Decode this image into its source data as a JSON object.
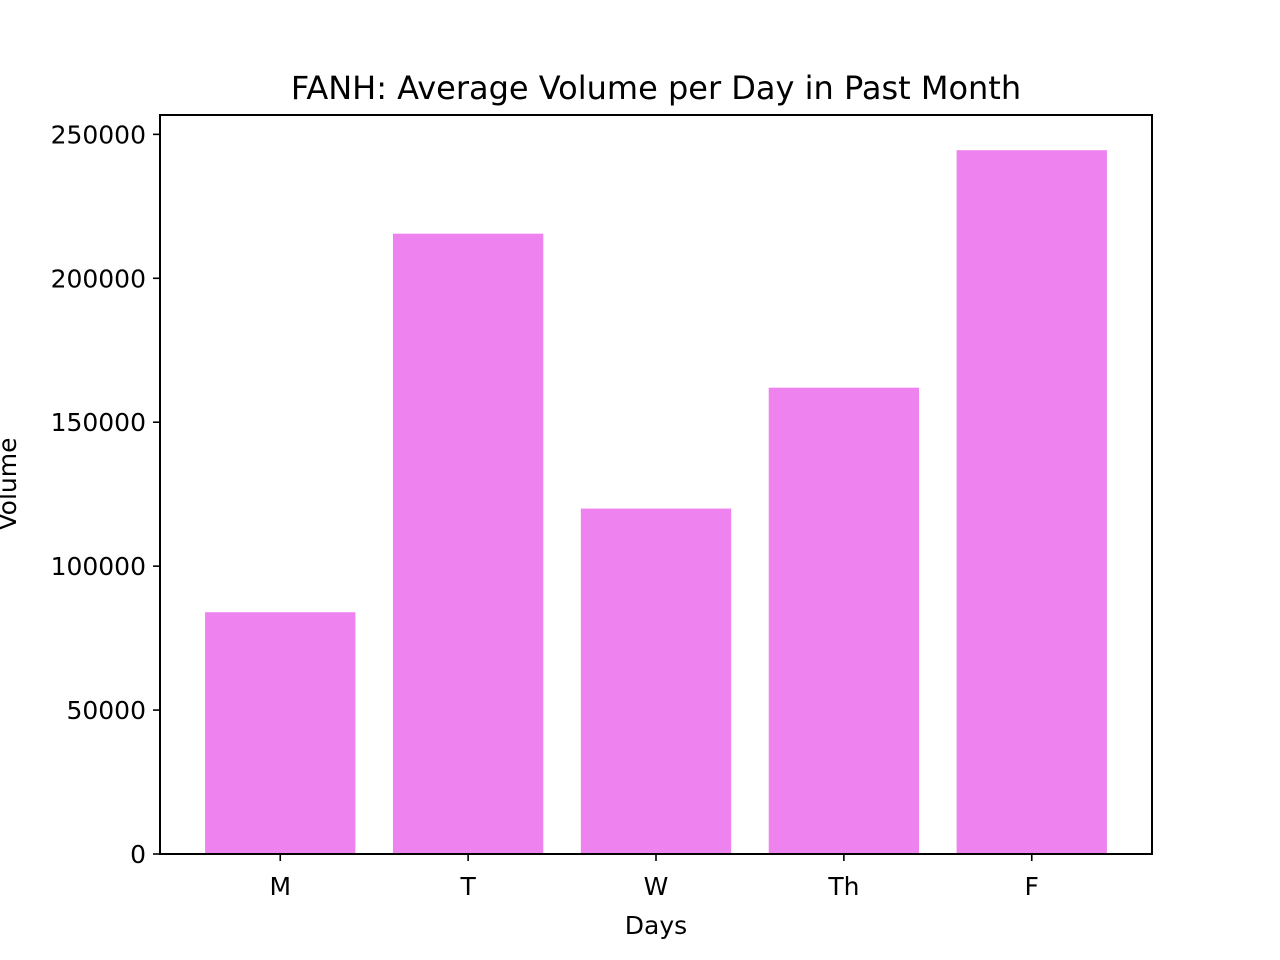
{
  "chart_data": {
    "type": "bar",
    "title": "FANH: Average Volume per Day in Past Month",
    "xlabel": "Days",
    "ylabel": "Volume",
    "categories": [
      "M",
      "T",
      "W",
      "Th",
      "F"
    ],
    "values": [
      84000,
      215500,
      120000,
      162000,
      244500
    ],
    "yticks": [
      0,
      50000,
      100000,
      150000,
      200000,
      250000
    ],
    "ylim": [
      0,
      256725
    ],
    "bar_color": "#ee82ee",
    "grid": false,
    "legend": "none"
  }
}
